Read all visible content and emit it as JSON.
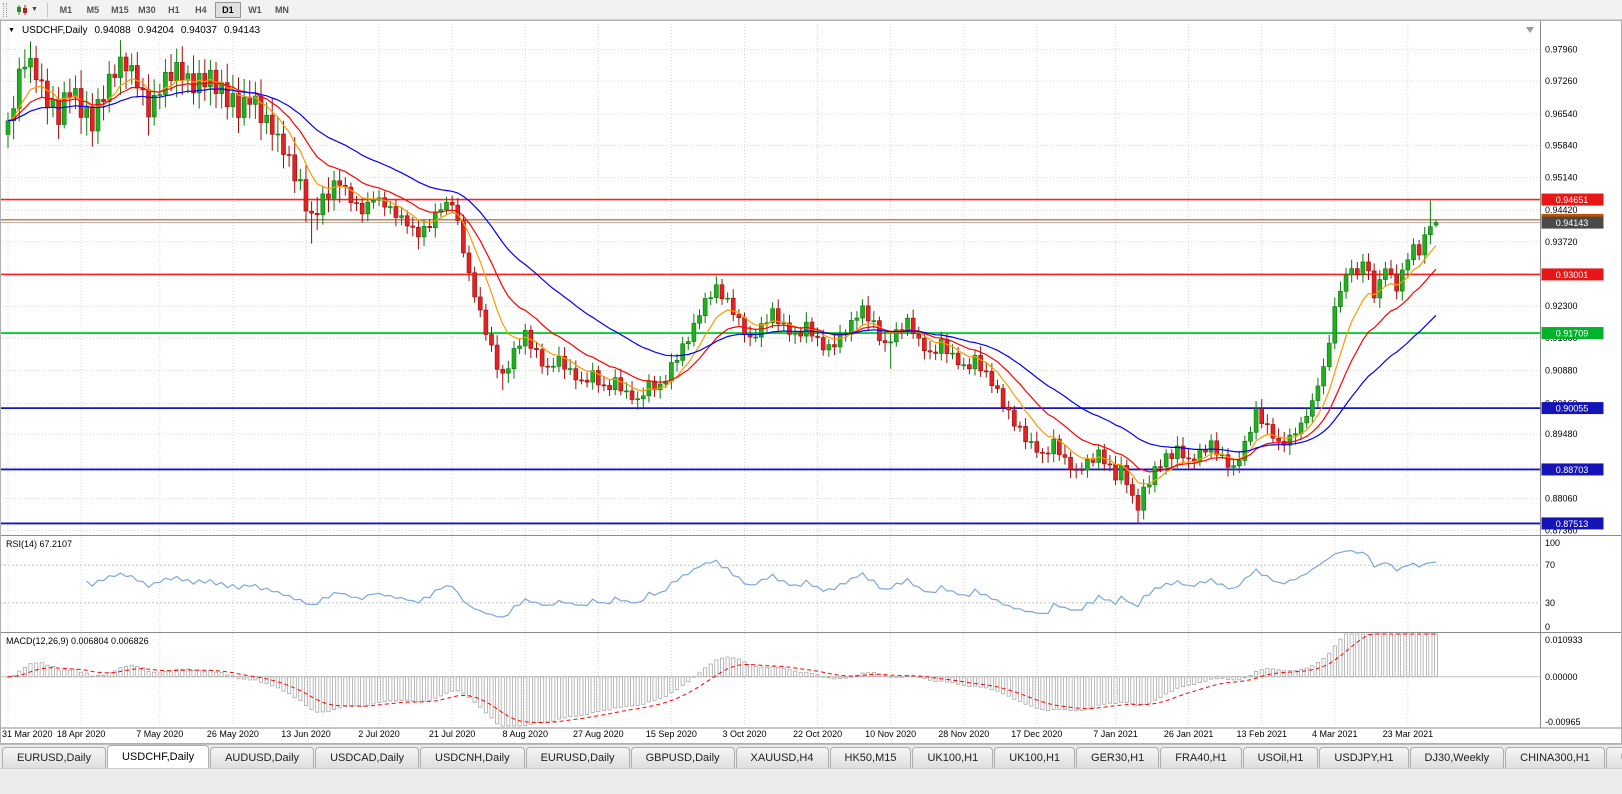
{
  "toolbar": {
    "chart_type_icon": "candlestick-chart-icon",
    "timeframes": [
      "M1",
      "M5",
      "M15",
      "M30",
      "H1",
      "H4",
      "D1",
      "W1",
      "MN"
    ],
    "active_timeframe": "D1"
  },
  "chart_header": {
    "marker": "▼",
    "symbol": "USDCHF,Daily",
    "open": "0.94088",
    "high": "0.94204",
    "low": "0.94037",
    "close": "0.94143"
  },
  "indicators": {
    "rsi_label": "RSI(14) 67.2107",
    "macd_label": "MACD(12,26,9) 0.006804 0.006826"
  },
  "tabs": {
    "active_index": 1,
    "items": [
      "EURUSD,Daily",
      "USDCHF,Daily",
      "AUDUSD,Daily",
      "USDCAD,Daily",
      "USDCNH,Daily",
      "EURUSD,Daily",
      "GBPUSD,Daily",
      "XAUUSD,H4",
      "HK50,M15",
      "UK100,H1",
      "UK100,H1",
      "GER30,H1",
      "FRA40,H1",
      "USOil,H1",
      "USDJPY,H1",
      "DJ30,Weekly",
      "CHINA300,H1",
      "U"
    ]
  },
  "chart_data": {
    "type": "candlestick",
    "symbol": "USDCHF",
    "timeframe": "Daily",
    "n_candles": 255,
    "price_scale": {
      "min": 0.8728,
      "max": 0.9852
    },
    "price_ticks": [
      "0.97960",
      "0.97260",
      "0.96540",
      "0.95840",
      "0.95140",
      "0.94420",
      "0.93720",
      "0.93020",
      "0.92300",
      "0.91600",
      "0.90880",
      "0.90160",
      "0.89480",
      "0.88760",
      "0.88060",
      "0.87360"
    ],
    "date_labels": [
      {
        "index": 0,
        "text": "31 Mar 2020"
      },
      {
        "index": 13,
        "text": "18 Apr 2020"
      },
      {
        "index": 27,
        "text": "7 May 2020"
      },
      {
        "index": 40,
        "text": "26 May 2020"
      },
      {
        "index": 53,
        "text": "13 Jun 2020"
      },
      {
        "index": 66,
        "text": "2 Jul 2020"
      },
      {
        "index": 79,
        "text": "21 Jul 2020"
      },
      {
        "index": 92,
        "text": "8 Aug 2020"
      },
      {
        "index": 105,
        "text": "27 Aug 2020"
      },
      {
        "index": 118,
        "text": "15 Sep 2020"
      },
      {
        "index": 131,
        "text": "3 Oct 2020"
      },
      {
        "index": 144,
        "text": "22 Oct 2020"
      },
      {
        "index": 157,
        "text": "10 Nov 2020"
      },
      {
        "index": 170,
        "text": "28 Nov 2020"
      },
      {
        "index": 183,
        "text": "17 Dec 2020"
      },
      {
        "index": 197,
        "text": "7 Jan 2021"
      },
      {
        "index": 210,
        "text": "26 Jan 2021"
      },
      {
        "index": 223,
        "text": "13 Feb 2021"
      },
      {
        "index": 236,
        "text": "4 Mar 2021"
      },
      {
        "index": 249,
        "text": "23 Mar 2021"
      }
    ],
    "close_anchors": [
      [
        0,
        0.9615
      ],
      [
        2,
        0.9735
      ],
      [
        3,
        0.9772
      ],
      [
        5,
        0.9748
      ],
      [
        7,
        0.9682
      ],
      [
        9,
        0.9655
      ],
      [
        11,
        0.9702
      ],
      [
        13,
        0.9668
      ],
      [
        15,
        0.964
      ],
      [
        17,
        0.97
      ],
      [
        19,
        0.9755
      ],
      [
        21,
        0.9768
      ],
      [
        23,
        0.9722
      ],
      [
        25,
        0.9664
      ],
      [
        27,
        0.9708
      ],
      [
        29,
        0.9752
      ],
      [
        31,
        0.9742
      ],
      [
        33,
        0.9712
      ],
      [
        35,
        0.9738
      ],
      [
        37,
        0.9715
      ],
      [
        39,
        0.9688
      ],
      [
        41,
        0.9662
      ],
      [
        43,
        0.9695
      ],
      [
        45,
        0.9648
      ],
      [
        47,
        0.962
      ],
      [
        49,
        0.9578
      ],
      [
        51,
        0.9528
      ],
      [
        53,
        0.9455
      ],
      [
        54,
        0.9412
      ],
      [
        55,
        0.9448
      ],
      [
        57,
        0.9482
      ],
      [
        59,
        0.9508
      ],
      [
        61,
        0.9468
      ],
      [
        63,
        0.9438
      ],
      [
        65,
        0.9472
      ],
      [
        67,
        0.9455
      ],
      [
        69,
        0.9432
      ],
      [
        71,
        0.9412
      ],
      [
        73,
        0.9388
      ],
      [
        75,
        0.9408
      ],
      [
        77,
        0.9448
      ],
      [
        79,
        0.9462
      ],
      [
        80,
        0.9412
      ],
      [
        81,
        0.9352
      ],
      [
        82,
        0.9298
      ],
      [
        83,
        0.9255
      ],
      [
        84,
        0.9215
      ],
      [
        85,
        0.9175
      ],
      [
        86,
        0.9138
      ],
      [
        87,
        0.9098
      ],
      [
        88,
        0.9072
      ],
      [
        90,
        0.9132
      ],
      [
        92,
        0.9168
      ],
      [
        94,
        0.9125
      ],
      [
        96,
        0.9092
      ],
      [
        98,
        0.9112
      ],
      [
        100,
        0.9082
      ],
      [
        102,
        0.9062
      ],
      [
        104,
        0.9078
      ],
      [
        106,
        0.9048
      ],
      [
        108,
        0.9062
      ],
      [
        110,
        0.9035
      ],
      [
        112,
        0.9022
      ],
      [
        114,
        0.9058
      ],
      [
        116,
        0.9048
      ],
      [
        118,
        0.9095
      ],
      [
        120,
        0.9138
      ],
      [
        122,
        0.9188
      ],
      [
        124,
        0.9238
      ],
      [
        126,
        0.9272
      ],
      [
        128,
        0.9242
      ],
      [
        130,
        0.9195
      ],
      [
        132,
        0.9158
      ],
      [
        134,
        0.9182
      ],
      [
        136,
        0.9215
      ],
      [
        138,
        0.9188
      ],
      [
        140,
        0.9162
      ],
      [
        142,
        0.9185
      ],
      [
        144,
        0.9152
      ],
      [
        146,
        0.9135
      ],
      [
        148,
        0.9162
      ],
      [
        150,
        0.9195
      ],
      [
        152,
        0.9222
      ],
      [
        154,
        0.9188
      ],
      [
        156,
        0.9142
      ],
      [
        158,
        0.9172
      ],
      [
        160,
        0.9196
      ],
      [
        162,
        0.9152
      ],
      [
        164,
        0.9122
      ],
      [
        166,
        0.9148
      ],
      [
        168,
        0.9118
      ],
      [
        170,
        0.9092
      ],
      [
        172,
        0.9112
      ],
      [
        174,
        0.9078
      ],
      [
        176,
        0.9042
      ],
      [
        178,
        0.8995
      ],
      [
        180,
        0.8958
      ],
      [
        182,
        0.8922
      ],
      [
        184,
        0.8902
      ],
      [
        186,
        0.8928
      ],
      [
        188,
        0.8892
      ],
      [
        190,
        0.8865
      ],
      [
        192,
        0.8888
      ],
      [
        194,
        0.8905
      ],
      [
        196,
        0.8872
      ],
      [
        197,
        0.8852
      ],
      [
        198,
        0.8872
      ],
      [
        199,
        0.8845
      ],
      [
        200,
        0.8808
      ],
      [
        201,
        0.8788
      ],
      [
        202,
        0.8825
      ],
      [
        204,
        0.8868
      ],
      [
        206,
        0.8895
      ],
      [
        208,
        0.8915
      ],
      [
        210,
        0.8888
      ],
      [
        212,
        0.8905
      ],
      [
        214,
        0.8928
      ],
      [
        216,
        0.8898
      ],
      [
        218,
        0.8872
      ],
      [
        220,
        0.8925
      ],
      [
        221,
        0.8958
      ],
      [
        222,
        0.8995
      ],
      [
        224,
        0.8962
      ],
      [
        226,
        0.8925
      ],
      [
        228,
        0.8942
      ],
      [
        230,
        0.8968
      ],
      [
        232,
        0.9018
      ],
      [
        233,
        0.9058
      ],
      [
        234,
        0.9092
      ],
      [
        235,
        0.9152
      ],
      [
        236,
        0.9225
      ],
      [
        237,
        0.9268
      ],
      [
        238,
        0.9295
      ],
      [
        239,
        0.9318
      ],
      [
        240,
        0.9295
      ],
      [
        241,
        0.9332
      ],
      [
        242,
        0.9305
      ],
      [
        243,
        0.9252
      ],
      [
        244,
        0.9285
      ],
      [
        245,
        0.9318
      ],
      [
        246,
        0.9295
      ],
      [
        247,
        0.9268
      ],
      [
        248,
        0.9305
      ],
      [
        249,
        0.9338
      ],
      [
        250,
        0.9362
      ],
      [
        251,
        0.9348
      ],
      [
        252,
        0.9385
      ],
      [
        253,
        0.9412
      ],
      [
        254,
        0.9414
      ]
    ],
    "wick_events": [
      [
        3,
        "high",
        0.9796
      ],
      [
        10,
        "low",
        0.9622
      ],
      [
        21,
        "high",
        0.9789
      ],
      [
        54,
        "low",
        0.9368
      ],
      [
        73,
        "low",
        0.9355
      ],
      [
        88,
        "low",
        0.9045
      ],
      [
        112,
        "low",
        0.9002
      ],
      [
        126,
        "high",
        0.9296
      ],
      [
        157,
        "low",
        0.9092
      ],
      [
        201,
        "low",
        0.8751
      ],
      [
        253,
        "high",
        0.9463
      ]
    ],
    "last_candle": {
      "open": 0.94088,
      "high": 0.94204,
      "low": 0.94037,
      "close": 0.94143
    },
    "zigzag": {
      "base": 0.0011,
      "early_extra": 0.0014,
      "early_until": 60,
      "late_damp_from": 228,
      "late_damp_mult": 0.6
    },
    "wick": {
      "base": 0.0009,
      "var": 0.0013,
      "early_mult": 1.9,
      "early_until": 60
    },
    "candles": {
      "up_fill": "#1FAF1F",
      "up_stroke": "#0B780B",
      "down_fill": "#E32222",
      "down_stroke": "#9E0B0B"
    },
    "moving_averages": [
      {
        "type": "ema",
        "period": 8,
        "color": "#FF9900"
      },
      {
        "type": "ema",
        "period": 16,
        "color": "#FF0000"
      },
      {
        "type": "ema",
        "period": 34,
        "color": "#0000FF"
      }
    ],
    "hlines": [
      {
        "price": 0.94651,
        "color": "#FF2020",
        "width": 1.6,
        "label": "0.94651",
        "badge": "#E81717"
      },
      {
        "price": 0.94204,
        "color": "#C45200",
        "width": 1.2,
        "label": "0.94204",
        "badge": "#C45200"
      },
      {
        "price": 0.94143,
        "color": "#ABABAB",
        "width": 1.0,
        "label": "0.94143",
        "badge": "#4A4A4A"
      },
      {
        "price": 0.93001,
        "color": "#FF2020",
        "width": 1.6,
        "label": "0.93001",
        "badge": "#E81717"
      },
      {
        "price": 0.91709,
        "color": "#00D42A",
        "width": 1.8,
        "label": "0.91709",
        "badge": "#00B32A"
      },
      {
        "price": 0.90055,
        "color": "#1414CC",
        "width": 1.8,
        "label": "0.90055",
        "badge": "#1414B8"
      },
      {
        "price": 0.88703,
        "color": "#1414CC",
        "width": 1.8,
        "label": "0.88703",
        "badge": "#1414B8"
      },
      {
        "price": 0.87513,
        "color": "#1414CC",
        "width": 1.8,
        "label": "0.87513",
        "badge": "#1414B8"
      }
    ],
    "rsi": {
      "period": 14,
      "color": "#7AA7DC",
      "levels": [
        100,
        70,
        30,
        0
      ],
      "current": "67.2107"
    },
    "macd": {
      "fast": 12,
      "slow": 26,
      "signal_period": 9,
      "hist_color": "#A9A9A9",
      "signal_color": "#FF0000",
      "axis_labels": [
        "0.010933",
        "0.00000",
        "-0.00965"
      ],
      "plot_scale": {
        "min": -0.0092,
        "max": 0.008
      },
      "current_macd": "0.006804",
      "current_signal": "0.006826"
    }
  }
}
